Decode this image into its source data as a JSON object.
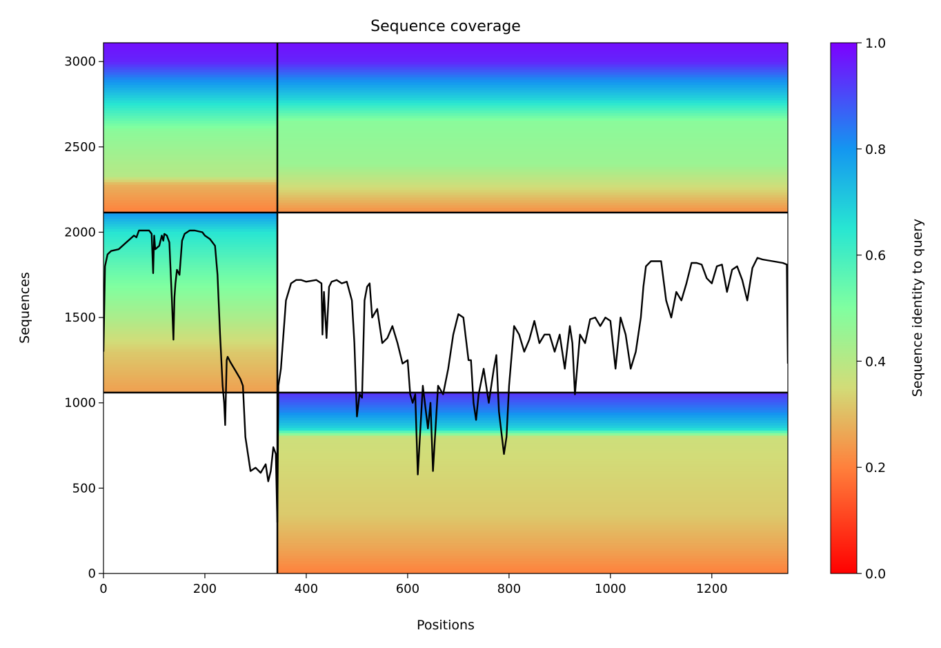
{
  "chart_data": {
    "type": "heatmap",
    "title": "Sequence coverage",
    "xlabel": "Positions",
    "ylabel": "Sequences",
    "xlim": [
      0,
      1350
    ],
    "ylim": [
      0,
      3110
    ],
    "xticks": [
      0,
      200,
      400,
      600,
      800,
      1000,
      1200
    ],
    "yticks": [
      0,
      500,
      1000,
      1500,
      2000,
      2500,
      3000
    ],
    "colormap": "rainbow",
    "colorbar": {
      "label": "Sequence identity to query",
      "range": [
        0.0,
        1.0
      ],
      "ticks": [
        0.0,
        0.2,
        0.4,
        0.6,
        0.8,
        1.0
      ]
    },
    "dividers": {
      "x": [
        343
      ],
      "y": [
        1060,
        2115
      ]
    },
    "blocks": [
      {
        "x0": 0,
        "x1": 343,
        "y0": 2115,
        "y1": 3110,
        "stops": [
          [
            2115,
            0.2
          ],
          [
            2280,
            0.28
          ],
          [
            2330,
            0.4
          ],
          [
            2600,
            0.48
          ],
          [
            2780,
            0.68
          ],
          [
            2900,
            0.82
          ],
          [
            3000,
            0.95
          ],
          [
            3110,
            0.98
          ]
        ]
      },
      {
        "x0": 343,
        "x1": 1350,
        "y0": 2115,
        "y1": 3110,
        "stops": [
          [
            2115,
            0.22
          ],
          [
            2250,
            0.34
          ],
          [
            2400,
            0.45
          ],
          [
            2650,
            0.48
          ],
          [
            2780,
            0.68
          ],
          [
            2900,
            0.82
          ],
          [
            3000,
            0.95
          ],
          [
            3110,
            0.98
          ]
        ]
      },
      {
        "x0": 0,
        "x1": 343,
        "y0": 1060,
        "y1": 2115,
        "stops": [
          [
            1060,
            0.25
          ],
          [
            1300,
            0.32
          ],
          [
            1500,
            0.42
          ],
          [
            1800,
            0.55
          ],
          [
            2000,
            0.65
          ],
          [
            2115,
            0.8
          ]
        ]
      },
      {
        "x0": 343,
        "x1": 1350,
        "y0": 0,
        "y1": 1060,
        "stops": [
          [
            0,
            0.2
          ],
          [
            150,
            0.26
          ],
          [
            350,
            0.32
          ],
          [
            800,
            0.36
          ],
          [
            850,
            0.68
          ],
          [
            950,
            0.82
          ],
          [
            1060,
            0.93
          ]
        ]
      }
    ],
    "coverage_line": {
      "x": [
        0,
        3,
        8,
        15,
        30,
        60,
        65,
        70,
        80,
        90,
        95,
        98,
        100,
        102,
        110,
        115,
        118,
        120,
        125,
        130,
        135,
        138,
        140,
        142,
        145,
        150,
        155,
        160,
        165,
        170,
        180,
        195,
        200,
        210,
        220,
        225,
        230,
        235,
        238,
        240,
        243,
        245,
        250,
        260,
        270,
        275,
        280,
        285,
        290,
        300,
        310,
        320,
        325,
        330,
        335,
        340,
        343,
        345,
        350,
        360,
        370,
        380,
        390,
        400,
        420,
        430,
        432,
        435,
        440,
        445,
        450,
        460,
        470,
        480,
        490,
        495,
        500,
        505,
        510,
        515,
        520,
        525,
        530,
        540,
        550,
        560,
        570,
        580,
        590,
        600,
        605,
        610,
        615,
        620,
        630,
        640,
        645,
        650,
        660,
        670,
        680,
        690,
        700,
        710,
        720,
        725,
        730,
        735,
        740,
        750,
        760,
        770,
        775,
        780,
        790,
        795,
        800,
        810,
        820,
        830,
        840,
        850,
        860,
        870,
        880,
        890,
        900,
        910,
        920,
        925,
        930,
        940,
        950,
        960,
        970,
        980,
        990,
        1000,
        1010,
        1020,
        1030,
        1040,
        1050,
        1060,
        1065,
        1070,
        1080,
        1090,
        1100,
        1110,
        1120,
        1130,
        1140,
        1150,
        1160,
        1170,
        1180,
        1190,
        1200,
        1210,
        1220,
        1230,
        1240,
        1250,
        1260,
        1270,
        1280,
        1290,
        1300,
        1320,
        1340,
        1348,
        1350
      ],
      "y": [
        1300,
        1800,
        1870,
        1890,
        1900,
        1980,
        1970,
        2010,
        2010,
        2010,
        1990,
        1760,
        1980,
        1900,
        1920,
        1980,
        1950,
        1990,
        1980,
        1940,
        1600,
        1370,
        1620,
        1700,
        1780,
        1750,
        1950,
        1990,
        2000,
        2010,
        2010,
        2000,
        1980,
        1960,
        1920,
        1750,
        1400,
        1100,
        1000,
        870,
        1250,
        1270,
        1240,
        1190,
        1140,
        1100,
        800,
        700,
        600,
        620,
        590,
        640,
        540,
        600,
        740,
        700,
        300,
        1100,
        1200,
        1600,
        1700,
        1720,
        1720,
        1710,
        1720,
        1700,
        1400,
        1650,
        1380,
        1680,
        1710,
        1720,
        1700,
        1710,
        1600,
        1350,
        920,
        1050,
        1030,
        1600,
        1680,
        1700,
        1500,
        1550,
        1350,
        1380,
        1450,
        1350,
        1230,
        1250,
        1050,
        1000,
        1050,
        580,
        1100,
        850,
        1000,
        600,
        1100,
        1050,
        1200,
        1400,
        1520,
        1500,
        1250,
        1250,
        1000,
        900,
        1050,
        1200,
        1000,
        1200,
        1280,
        950,
        700,
        800,
        1100,
        1450,
        1400,
        1300,
        1370,
        1480,
        1350,
        1400,
        1400,
        1300,
        1400,
        1200,
        1450,
        1350,
        1050,
        1400,
        1350,
        1490,
        1500,
        1450,
        1500,
        1480,
        1200,
        1500,
        1400,
        1200,
        1300,
        1500,
        1680,
        1800,
        1830,
        1830,
        1830,
        1600,
        1500,
        1650,
        1600,
        1700,
        1820,
        1820,
        1810,
        1730,
        1700,
        1800,
        1810,
        1650,
        1780,
        1800,
        1720,
        1600,
        1790,
        1850,
        1840,
        1830,
        1820,
        1810,
        1230
      ]
    }
  }
}
